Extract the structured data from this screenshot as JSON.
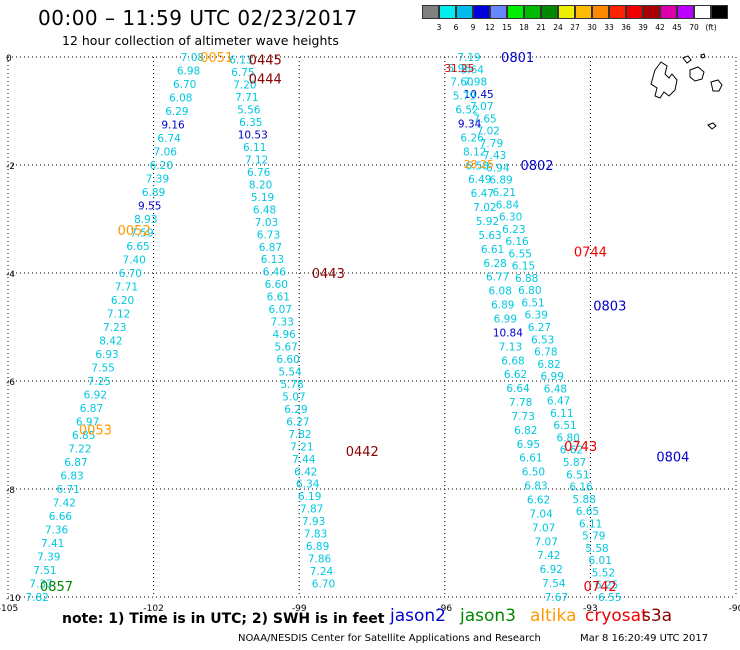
{
  "title": "00:00 – 11:59 UTC 02/23/2017",
  "subtitle": "12 hour collection of altimeter wave heights",
  "legend": {
    "colors": [
      "#808080",
      "#00eeee",
      "#00bbee",
      "#0000dd",
      "#6688ff",
      "#00ee00",
      "#00bb00",
      "#008800",
      "#eeee00",
      "#ffbb00",
      "#ff8800",
      "#ff2200",
      "#ee0000",
      "#aa0000",
      "#dd00aa",
      "#bb00ff",
      "#ffffff",
      "#000000"
    ],
    "labels": [
      "3",
      "6",
      "9",
      "12",
      "15",
      "18",
      "21",
      "24",
      "27",
      "30",
      "33",
      "36",
      "39",
      "42",
      "45",
      "70",
      "(ft)"
    ]
  },
  "map": {
    "x_ticks": [
      "-105",
      "-102",
      "-99",
      "-96",
      "-93",
      "-90"
    ],
    "y_ticks": [
      "0",
      "-2",
      "-4",
      "-6",
      "-8",
      "-10"
    ],
    "xlim": [
      -105,
      -90
    ],
    "ylim": [
      -10,
      0
    ]
  },
  "colors": {
    "cyan": "#00c8e0",
    "blue": "#0000cc",
    "orange": "#ff9900",
    "red": "#ee0000",
    "darkred": "#880000",
    "green": "#008800"
  },
  "passes": [
    {
      "label": "0051",
      "color": "orange",
      "lon": -100.7,
      "lat": 0.0
    },
    {
      "label": "0052",
      "color": "orange",
      "lon": -102.4,
      "lat": -3.2
    },
    {
      "label": "0053",
      "color": "orange",
      "lon": -103.2,
      "lat": -6.9
    },
    {
      "label": "0857",
      "color": "green",
      "lon": -104.0,
      "lat": -9.8
    },
    {
      "label": "0445",
      "color": "darkred",
      "lon": -99.7,
      "lat": -0.05
    },
    {
      "label": "0444",
      "color": "darkred",
      "lon": -99.7,
      "lat": -0.4
    },
    {
      "label": "0443",
      "color": "darkred",
      "lon": -98.4,
      "lat": -4.0
    },
    {
      "label": "0442",
      "color": "darkred",
      "lon": -97.7,
      "lat": -7.3
    },
    {
      "label": "0801",
      "color": "blue",
      "lon": -94.5,
      "lat": 0.0
    },
    {
      "label": "0802",
      "color": "blue",
      "lon": -94.1,
      "lat": -2.0
    },
    {
      "label": "0803",
      "color": "blue",
      "lon": -92.6,
      "lat": -4.6
    },
    {
      "label": "0804",
      "color": "blue",
      "lon": -91.3,
      "lat": -7.4
    },
    {
      "label": "0744",
      "color": "red",
      "lon": -93.0,
      "lat": -3.6
    },
    {
      "label": "0743",
      "color": "red",
      "lon": -93.2,
      "lat": -7.2
    },
    {
      "label": "0742",
      "color": "red",
      "lon": -92.8,
      "lat": -9.8
    }
  ],
  "tracks": [
    {
      "name": "altika-west",
      "color": "cyan",
      "lon0": -101.2,
      "lat0": 0.0,
      "lon1": -104.4,
      "lat1": -10.0,
      "values": [
        "7.08",
        "6.98",
        "6.70",
        "6.08",
        "6.29",
        "9.16",
        "6.74",
        "7.06",
        "6.20",
        "7.39",
        "6.89",
        "9.55",
        "8.93",
        "7.59",
        "6.65",
        "7.40",
        "6.70",
        "7.71",
        "6.20",
        "7.12",
        "7.23",
        "8.42",
        "6.93",
        "7.55",
        "7.25",
        "6.92",
        "6.87",
        "6.97",
        "6.85",
        "7.22",
        "6.87",
        "6.83",
        "6.71",
        "7.42",
        "6.66",
        "7.36",
        "7.41",
        "7.39",
        "7.51",
        "7.37",
        "7.82"
      ],
      "blue_idx": [
        5,
        11
      ]
    },
    {
      "name": "s3a-west",
      "color": "cyan",
      "lon0": -100.2,
      "lat0": -0.05,
      "lon1": -98.5,
      "lat1": -9.75,
      "values": [
        "6.13",
        "6.75",
        "7.20",
        "7.71",
        "5.56",
        "6.35",
        "10.53",
        "6.11",
        "7.12",
        "6.76",
        "8.20",
        "5.19",
        "6.48",
        "7.03",
        "6.73",
        "6.87",
        "6.13",
        "6.46",
        "6.60",
        "6.61",
        "6.07",
        "7.33",
        "4.96",
        "5.67",
        "6.60",
        "5.54",
        "5.78",
        "5.07",
        "6.29",
        "6.27",
        "7.82",
        "7.21",
        "7.44",
        "6.42",
        "6.34",
        "6.19",
        "7.87",
        "7.93",
        "7.83",
        "6.89",
        "7.86",
        "7.24",
        "6.70"
      ],
      "blue_idx": [
        6
      ]
    },
    {
      "name": "jason2-east",
      "color": "cyan",
      "lon0": -95.5,
      "lat0": 0.0,
      "lon1": -92.6,
      "lat1": -10.0,
      "values": [
        "7.19",
        "5.64",
        "7.98",
        "10.45",
        "7.07",
        "7.65",
        "7.02",
        "7.79",
        "7.43",
        "6.94",
        "6.89",
        "6.21",
        "6.84",
        "6.30",
        "6.23",
        "6.16",
        "6.55",
        "6.15",
        "6.88",
        "6.80",
        "6.51",
        "6.39",
        "6.27",
        "6.53",
        "6.78",
        "6.82",
        "6.99",
        "6.48",
        "6.47",
        "6.11",
        "6.51",
        "6.80",
        "6.62",
        "5.87",
        "6.51",
        "6.16",
        "5.88",
        "6.65",
        "6.11",
        "5.79",
        "5.58",
        "6.01",
        "5.52",
        "6.25",
        "6.55"
      ],
      "blue_idx": [
        3
      ]
    },
    {
      "name": "cryosat-east",
      "color": "cyan",
      "lon0": -95.7,
      "lat0": -0.2,
      "lon1": -93.7,
      "lat1": -10.0,
      "values": [
        "5.96",
        "7.60",
        "5.79",
        "6.52",
        "9.34",
        "6.26",
        "8.12",
        "6.58",
        "6.49",
        "6.47",
        "7.02",
        "5.92",
        "5.63",
        "6.61",
        "6.28",
        "6.77",
        "6.08",
        "6.89",
        "6.99",
        "10.84",
        "7.13",
        "6.68",
        "6.62",
        "6.64",
        "7.78",
        "7.73",
        "6.82",
        "6.95",
        "6.61",
        "6.50",
        "6.83",
        "6.62",
        "7.04",
        "7.07",
        "7.07",
        "7.42",
        "6.92",
        "7.54",
        "7.67"
      ],
      "blue_idx": [
        4,
        19
      ]
    }
  ],
  "overlay_values": [
    {
      "text": "31.25",
      "color": "red",
      "lon": -95.7,
      "lat": -0.2
    },
    {
      "text": "28.25",
      "color": "orange",
      "lon": -95.3,
      "lat": -1.98
    }
  ],
  "note_text": "note: 1) Time is in UTC; 2) SWH is in feet",
  "satellites": [
    {
      "name": "jason2",
      "color": "#0000cc"
    },
    {
      "name": "jason3",
      "color": "#008800"
    },
    {
      "name": "altika",
      "color": "#ff9900"
    },
    {
      "name": "cryosat",
      "color": "#ee0000"
    },
    {
      "name": "s3a",
      "color": "#880000"
    }
  ],
  "credit": "NOAA/NESDIS Center for Satellite Applications and Research",
  "timestamp": "Mar  8 16:20:49 UTC 2017"
}
